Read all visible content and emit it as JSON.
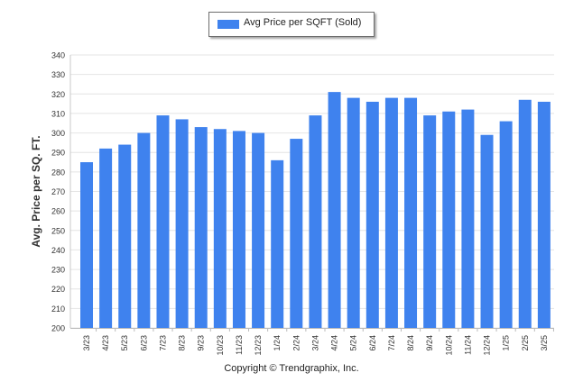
{
  "chart_data": {
    "type": "bar",
    "categories": [
      "3/23",
      "4/23",
      "5/23",
      "6/23",
      "7/23",
      "8/23",
      "9/23",
      "10/23",
      "11/23",
      "12/23",
      "1/24",
      "2/24",
      "3/24",
      "4/24",
      "5/24",
      "6/24",
      "7/24",
      "8/24",
      "9/24",
      "10/24",
      "11/24",
      "12/24",
      "1/25",
      "2/25",
      "3/25"
    ],
    "series": [
      {
        "name": "Avg Price per SQFT (Sold)",
        "values": [
          285,
          292,
          294,
          300,
          309,
          307,
          303,
          302,
          301,
          300,
          286,
          297,
          309,
          321,
          318,
          316,
          318,
          318,
          309,
          311,
          312,
          299,
          306,
          317,
          316
        ],
        "color": "#3f82ee"
      }
    ],
    "ylabel": "Avg. Price per SQ. FT.",
    "ylim": [
      200,
      340
    ],
    "yticks": [
      200,
      210,
      220,
      230,
      240,
      250,
      260,
      270,
      280,
      290,
      300,
      310,
      320,
      330,
      340
    ],
    "grid": true,
    "legend_position": "top-center"
  },
  "legend": {
    "label": "Avg Price per SQFT (Sold)"
  },
  "footer": {
    "copyright": "Copyright © Trendgraphix, Inc."
  }
}
